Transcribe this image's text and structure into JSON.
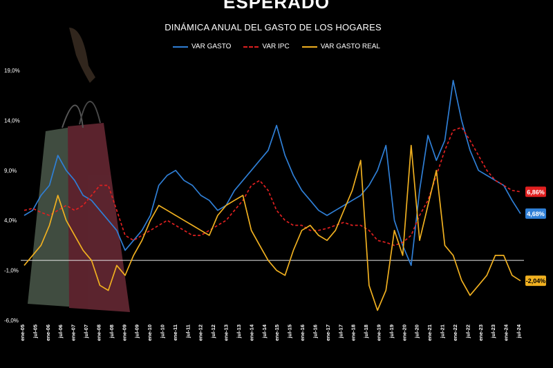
{
  "header": {
    "banner": "ESPERADO"
  },
  "footer": {
    "note": ""
  },
  "chart_data": {
    "type": "line",
    "title": "DINÁMICA ANUAL DEL GASTO DE LOS HOGARES",
    "xlabel": "",
    "ylabel": "",
    "ylim": [
      -6.0,
      19.0
    ],
    "yticks": [
      "-6,0%",
      "-1,0%",
      "4,0%",
      "9,0%",
      "14,0%",
      "19,0%"
    ],
    "ytick_values": [
      -6,
      -1,
      4,
      9,
      14,
      19
    ],
    "grid": false,
    "zero_line": true,
    "legend_position": "top-center",
    "xticks": [
      "ene-05",
      "jul-05",
      "ene-06",
      "jul-06",
      "ene-07",
      "jul-07",
      "ene-08",
      "jul-08",
      "ene-09",
      "jul-09",
      "ene-10",
      "jul-10",
      "ene-11",
      "jul-11",
      "ene-12",
      "jul-12",
      "ene-13",
      "jul-13",
      "ene-14",
      "jul-14",
      "ene-15",
      "jul-15",
      "ene-16",
      "jul-16",
      "ene-17",
      "jul-17",
      "ene-18",
      "jul-18",
      "ene-19",
      "jul-19",
      "ene-20",
      "jul-20",
      "ene-21",
      "jul-21",
      "ene-22",
      "jul-22",
      "ene-23",
      "jul-23",
      "ene-24",
      "jul-24"
    ],
    "series": [
      {
        "name": "VAR GASTO",
        "color": "#2f7fd6",
        "dashed": false,
        "end_label": "4,68%",
        "values": [
          4.5,
          5.0,
          6.5,
          7.5,
          10.5,
          9.0,
          8.0,
          6.5,
          6.0,
          5.0,
          4.0,
          3.0,
          1.0,
          2.0,
          3.0,
          4.5,
          7.5,
          8.5,
          9.0,
          8.0,
          7.5,
          6.5,
          6.0,
          5.0,
          5.5,
          7.0,
          8.0,
          9.0,
          10.0,
          11.0,
          13.5,
          10.5,
          8.5,
          7.0,
          6.0,
          5.0,
          4.5,
          5.0,
          5.5,
          6.0,
          6.5,
          7.5,
          9.0,
          11.5,
          4.0,
          1.5,
          -0.5,
          7.0,
          12.5,
          10.0,
          12.0,
          18.0,
          14.0,
          11.0,
          9.0,
          8.5,
          8.0,
          7.5,
          6.0,
          4.68
        ]
      },
      {
        "name": "VAR IPC",
        "color": "#e02020",
        "dashed": true,
        "end_label": "6,86%",
        "values": [
          5.0,
          5.2,
          4.8,
          4.5,
          5.0,
          5.5,
          5.0,
          5.5,
          6.5,
          7.5,
          7.5,
          5.0,
          2.5,
          2.0,
          2.5,
          3.0,
          3.5,
          4.0,
          3.5,
          3.0,
          2.5,
          2.5,
          3.0,
          3.5,
          4.0,
          5.0,
          6.0,
          7.5,
          8.0,
          7.0,
          5.0,
          4.0,
          3.5,
          3.5,
          3.0,
          3.0,
          3.2,
          3.5,
          3.8,
          3.5,
          3.5,
          3.0,
          2.0,
          1.8,
          1.5,
          1.8,
          2.5,
          4.5,
          6.0,
          8.5,
          11.0,
          13.0,
          13.3,
          12.0,
          10.5,
          9.0,
          8.0,
          7.5,
          7.0,
          6.86
        ]
      },
      {
        "name": "VAR GASTO REAL",
        "color": "#f0b020",
        "dashed": false,
        "end_label": "-2,04%",
        "values": [
          -0.5,
          0.5,
          1.5,
          3.5,
          6.5,
          4.0,
          2.5,
          1.0,
          0.0,
          -2.5,
          -3.0,
          -0.5,
          -1.5,
          0.5,
          2.0,
          4.0,
          5.5,
          5.0,
          4.5,
          4.0,
          3.5,
          3.0,
          2.5,
          4.5,
          5.5,
          6.0,
          6.5,
          3.0,
          1.5,
          0.0,
          -1.0,
          -1.5,
          1.0,
          3.0,
          3.5,
          2.5,
          2.0,
          3.0,
          5.0,
          7.0,
          10.0,
          -2.5,
          -5.0,
          -3.0,
          3.0,
          0.5,
          11.5,
          2.0,
          5.5,
          9.0,
          1.5,
          0.5,
          -2.0,
          -3.5,
          -2.5,
          -1.5,
          0.5,
          0.5,
          -1.5,
          -2.04
        ]
      }
    ]
  }
}
